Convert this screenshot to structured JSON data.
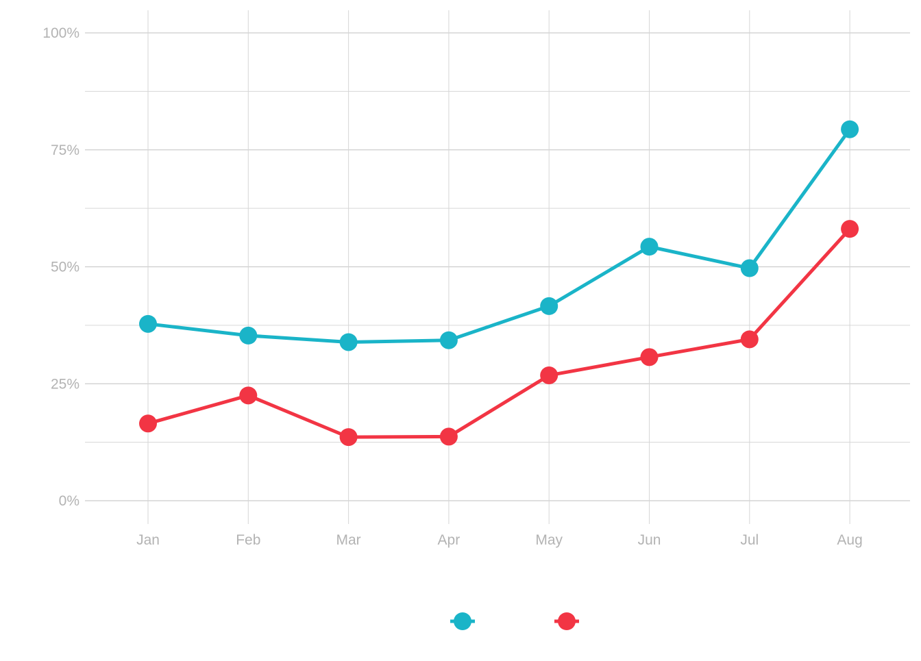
{
  "chart_data": {
    "type": "line",
    "title": "",
    "xlabel": "",
    "ylabel": "",
    "categories": [
      "Jan",
      "Feb",
      "Mar",
      "Apr",
      "May",
      "Jun",
      "Jul",
      "Aug"
    ],
    "ylim": [
      0,
      1
    ],
    "y_ticks": [
      {
        "value": 0,
        "label": "0%"
      },
      {
        "value": 0.25,
        "label": "25%"
      },
      {
        "value": 0.5,
        "label": "50%"
      },
      {
        "value": 0.75,
        "label": "75%"
      },
      {
        "value": 1,
        "label": "100%"
      }
    ],
    "grid": true,
    "legend_position": "bottom",
    "series": [
      {
        "color": "#1AB4C8",
        "values": [
          0.378,
          0.353,
          0.339,
          0.343,
          0.416,
          0.543,
          0.497,
          0.794
        ]
      },
      {
        "color": "#F23544",
        "values": [
          0.165,
          0.225,
          0.136,
          0.137,
          0.268,
          0.307,
          0.345,
          0.581
        ]
      }
    ]
  }
}
